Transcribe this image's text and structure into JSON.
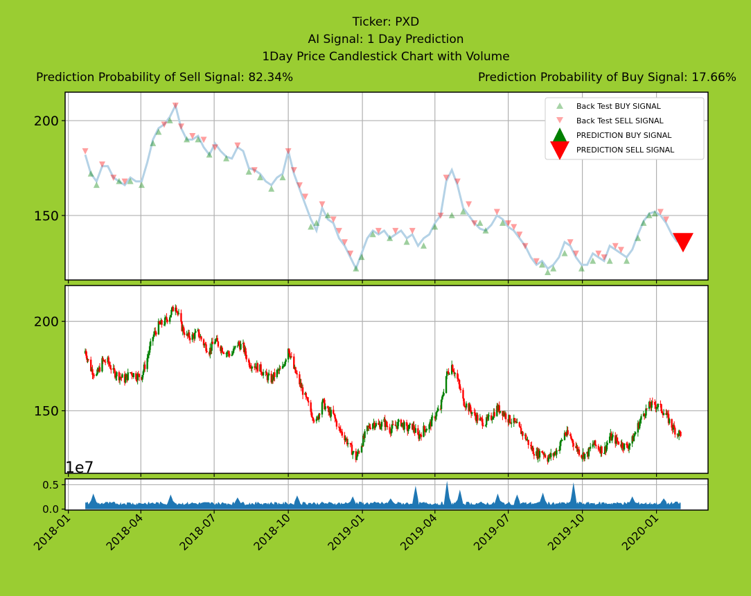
{
  "figure": {
    "background": "#9acd32",
    "title_lines": [
      "Ticker: PXD",
      "AI Signal: 1 Day Prediction",
      "1Day Price Candlestick Chart with Volume"
    ],
    "sell_prob_text": "Prediction Probability of Sell Signal: 82.34%",
    "buy_prob_text": "Prediction Probability of Buy Signal: 17.66%"
  },
  "chart_data": [
    {
      "type": "line",
      "name": "signals",
      "ylim": [
        116,
        215
      ],
      "yticks": [
        150,
        200
      ],
      "grid": true,
      "legend": {
        "placement": "top-right",
        "entries": [
          "Back Test BUY SIGNAL",
          "Back Test SELL SIGNAL",
          "PREDICTION BUY SIGNAL",
          "PREDICTION SELL SIGNAL"
        ]
      },
      "colors": {
        "price_line": "#b4d2e6",
        "buy": "#008000",
        "sell": "#ff0000"
      },
      "close_series": [
        [
          "2018-01-22",
          182
        ],
        [
          "2018-01-29",
          172
        ],
        [
          "2018-02-05",
          168
        ],
        [
          "2018-02-12",
          176
        ],
        [
          "2018-02-19",
          176
        ],
        [
          "2018-02-26",
          170
        ],
        [
          "2018-03-05",
          168
        ],
        [
          "2018-03-12",
          166
        ],
        [
          "2018-03-19",
          170
        ],
        [
          "2018-03-26",
          168
        ],
        [
          "2018-04-02",
          168
        ],
        [
          "2018-04-09",
          178
        ],
        [
          "2018-04-16",
          190
        ],
        [
          "2018-04-23",
          196
        ],
        [
          "2018-04-30",
          198
        ],
        [
          "2018-05-07",
          202
        ],
        [
          "2018-05-14",
          208
        ],
        [
          "2018-05-21",
          196
        ],
        [
          "2018-05-28",
          190
        ],
        [
          "2018-06-04",
          190
        ],
        [
          "2018-06-11",
          192
        ],
        [
          "2018-06-18",
          186
        ],
        [
          "2018-06-25",
          182
        ],
        [
          "2018-07-02",
          188
        ],
        [
          "2018-07-09",
          184
        ],
        [
          "2018-07-16",
          181
        ],
        [
          "2018-07-23",
          180
        ],
        [
          "2018-07-30",
          186
        ],
        [
          "2018-08-06",
          184
        ],
        [
          "2018-08-13",
          175
        ],
        [
          "2018-08-20",
          174
        ],
        [
          "2018-08-27",
          172
        ],
        [
          "2018-09-03",
          168
        ],
        [
          "2018-09-10",
          166
        ],
        [
          "2018-09-17",
          170
        ],
        [
          "2018-09-24",
          172
        ],
        [
          "2018-10-01",
          184
        ],
        [
          "2018-10-08",
          172
        ],
        [
          "2018-10-15",
          164
        ],
        [
          "2018-10-22",
          156
        ],
        [
          "2018-10-29",
          148
        ],
        [
          "2018-11-05",
          142
        ],
        [
          "2018-11-12",
          154
        ],
        [
          "2018-11-19",
          148
        ],
        [
          "2018-11-26",
          146
        ],
        [
          "2018-12-03",
          138
        ],
        [
          "2018-12-10",
          134
        ],
        [
          "2018-12-17",
          128
        ],
        [
          "2018-12-24",
          122
        ],
        [
          "2018-12-31",
          130
        ],
        [
          "2019-01-07",
          138
        ],
        [
          "2019-01-14",
          142
        ],
        [
          "2019-01-21",
          140
        ],
        [
          "2019-01-28",
          142
        ],
        [
          "2019-02-04",
          138
        ],
        [
          "2019-02-11",
          140
        ],
        [
          "2019-02-18",
          142
        ],
        [
          "2019-02-25",
          138
        ],
        [
          "2019-03-04",
          140
        ],
        [
          "2019-03-11",
          134
        ],
        [
          "2019-03-18",
          138
        ],
        [
          "2019-03-25",
          140
        ],
        [
          "2019-04-01",
          146
        ],
        [
          "2019-04-08",
          150
        ],
        [
          "2019-04-15",
          168
        ],
        [
          "2019-04-22",
          174
        ],
        [
          "2019-04-29",
          166
        ],
        [
          "2019-05-06",
          154
        ],
        [
          "2019-05-13",
          150
        ],
        [
          "2019-05-20",
          146
        ],
        [
          "2019-05-27",
          143
        ],
        [
          "2019-06-03",
          142
        ],
        [
          "2019-06-10",
          145
        ],
        [
          "2019-06-17",
          150
        ],
        [
          "2019-06-24",
          148
        ],
        [
          "2019-07-01",
          144
        ],
        [
          "2019-07-08",
          142
        ],
        [
          "2019-07-15",
          138
        ],
        [
          "2019-07-22",
          134
        ],
        [
          "2019-07-29",
          128
        ],
        [
          "2019-08-05",
          124
        ],
        [
          "2019-08-12",
          126
        ],
        [
          "2019-08-19",
          122
        ],
        [
          "2019-08-26",
          124
        ],
        [
          "2019-09-02",
          128
        ],
        [
          "2019-09-09",
          136
        ],
        [
          "2019-09-16",
          134
        ],
        [
          "2019-09-23",
          128
        ],
        [
          "2019-09-30",
          124
        ],
        [
          "2019-10-07",
          124
        ],
        [
          "2019-10-14",
          130
        ],
        [
          "2019-10-21",
          128
        ],
        [
          "2019-10-28",
          126
        ],
        [
          "2019-11-04",
          134
        ],
        [
          "2019-11-11",
          132
        ],
        [
          "2019-11-18",
          130
        ],
        [
          "2019-11-25",
          128
        ],
        [
          "2019-12-02",
          132
        ],
        [
          "2019-12-09",
          140
        ],
        [
          "2019-12-16",
          147
        ],
        [
          "2019-12-23",
          151
        ],
        [
          "2019-12-30",
          152
        ],
        [
          "2020-01-06",
          150
        ],
        [
          "2020-01-13",
          146
        ],
        [
          "2020-01-20",
          140
        ],
        [
          "2020-01-27",
          136
        ]
      ],
      "buy_signals": [
        [
          "2018-01-29",
          172
        ],
        [
          "2018-02-05",
          166
        ],
        [
          "2018-03-05",
          168
        ],
        [
          "2018-03-19",
          168
        ],
        [
          "2018-04-02",
          166
        ],
        [
          "2018-04-16",
          188
        ],
        [
          "2018-04-23",
          194
        ],
        [
          "2018-05-07",
          200
        ],
        [
          "2018-05-28",
          190
        ],
        [
          "2018-06-11",
          190
        ],
        [
          "2018-06-25",
          182
        ],
        [
          "2018-07-16",
          180
        ],
        [
          "2018-08-13",
          173
        ],
        [
          "2018-08-27",
          170
        ],
        [
          "2018-09-10",
          164
        ],
        [
          "2018-09-24",
          170
        ],
        [
          "2018-10-29",
          144
        ],
        [
          "2018-11-05",
          146
        ],
        [
          "2018-11-19",
          150
        ],
        [
          "2018-12-24",
          122
        ],
        [
          "2018-12-31",
          128
        ],
        [
          "2019-01-14",
          140
        ],
        [
          "2019-02-04",
          138
        ],
        [
          "2019-02-25",
          136
        ],
        [
          "2019-03-18",
          134
        ],
        [
          "2019-04-01",
          144
        ],
        [
          "2019-04-22",
          150
        ],
        [
          "2019-05-06",
          152
        ],
        [
          "2019-05-27",
          146
        ],
        [
          "2019-06-03",
          142
        ],
        [
          "2019-06-24",
          146
        ],
        [
          "2019-08-12",
          124
        ],
        [
          "2019-08-19",
          120
        ],
        [
          "2019-08-26",
          122
        ],
        [
          "2019-09-09",
          130
        ],
        [
          "2019-09-30",
          122
        ],
        [
          "2019-10-14",
          126
        ],
        [
          "2019-11-04",
          126
        ],
        [
          "2019-11-25",
          126
        ],
        [
          "2019-12-09",
          138
        ],
        [
          "2019-12-16",
          146
        ],
        [
          "2019-12-23",
          150
        ],
        [
          "2019-12-30",
          151
        ]
      ],
      "sell_signals": [
        [
          "2018-01-22",
          184
        ],
        [
          "2018-02-12",
          177
        ],
        [
          "2018-02-26",
          170
        ],
        [
          "2018-03-12",
          168
        ],
        [
          "2018-04-30",
          198
        ],
        [
          "2018-05-14",
          208
        ],
        [
          "2018-05-21",
          197
        ],
        [
          "2018-06-04",
          192
        ],
        [
          "2018-06-18",
          190
        ],
        [
          "2018-07-02",
          186
        ],
        [
          "2018-07-30",
          187
        ],
        [
          "2018-08-20",
          174
        ],
        [
          "2018-10-01",
          184
        ],
        [
          "2018-10-08",
          174
        ],
        [
          "2018-10-15",
          166
        ],
        [
          "2018-10-22",
          160
        ],
        [
          "2018-11-12",
          156
        ],
        [
          "2018-11-26",
          148
        ],
        [
          "2018-12-03",
          142
        ],
        [
          "2018-12-10",
          136
        ],
        [
          "2018-12-17",
          130
        ],
        [
          "2019-01-21",
          142
        ],
        [
          "2019-02-11",
          142
        ],
        [
          "2019-03-04",
          142
        ],
        [
          "2019-04-08",
          150
        ],
        [
          "2019-04-15",
          170
        ],
        [
          "2019-04-29",
          168
        ],
        [
          "2019-05-13",
          156
        ],
        [
          "2019-05-20",
          146
        ],
        [
          "2019-06-17",
          152
        ],
        [
          "2019-07-01",
          146
        ],
        [
          "2019-07-08",
          144
        ],
        [
          "2019-07-15",
          140
        ],
        [
          "2019-07-22",
          134
        ],
        [
          "2019-08-05",
          126
        ],
        [
          "2019-09-16",
          136
        ],
        [
          "2019-09-23",
          130
        ],
        [
          "2019-10-21",
          130
        ],
        [
          "2019-10-28",
          128
        ],
        [
          "2019-11-11",
          134
        ],
        [
          "2019-11-18",
          132
        ],
        [
          "2020-01-06",
          152
        ],
        [
          "2020-01-13",
          148
        ]
      ],
      "prediction": {
        "signal": "sell",
        "date": "2020-02-03",
        "price": 136
      }
    },
    {
      "type": "candlestick",
      "name": "price",
      "ylim": [
        115,
        220
      ],
      "yticks": [
        150,
        200
      ],
      "grid": true,
      "colors": {
        "up": "#008000",
        "down": "#ff0000"
      },
      "start_date": "2018-01-22",
      "end_date": "2020-01-31"
    },
    {
      "type": "area",
      "name": "volume",
      "offset_label": "1e7",
      "ylim": [
        -0.02,
        0.62
      ],
      "yticks": [
        "0.0",
        "0.5"
      ],
      "grid": true,
      "color": "#1f77b4",
      "base_level": 0.12,
      "spikes": [
        [
          "2018-02-01",
          0.32
        ],
        [
          "2018-05-08",
          0.3
        ],
        [
          "2018-07-30",
          0.24
        ],
        [
          "2018-10-12",
          0.28
        ],
        [
          "2018-12-20",
          0.26
        ],
        [
          "2019-02-05",
          0.22
        ],
        [
          "2019-03-08",
          0.48
        ],
        [
          "2019-04-16",
          0.58
        ],
        [
          "2019-05-02",
          0.4
        ],
        [
          "2019-06-18",
          0.32
        ],
        [
          "2019-07-12",
          0.3
        ],
        [
          "2019-08-13",
          0.34
        ],
        [
          "2019-09-20",
          0.55
        ],
        [
          "2019-12-02",
          0.26
        ],
        [
          "2020-01-10",
          0.22
        ]
      ],
      "x_ticks": [
        "2018-01",
        "2018-04",
        "2018-07",
        "2018-10",
        "2019-01",
        "2019-04",
        "2019-07",
        "2019-10",
        "2020-01"
      ]
    }
  ]
}
